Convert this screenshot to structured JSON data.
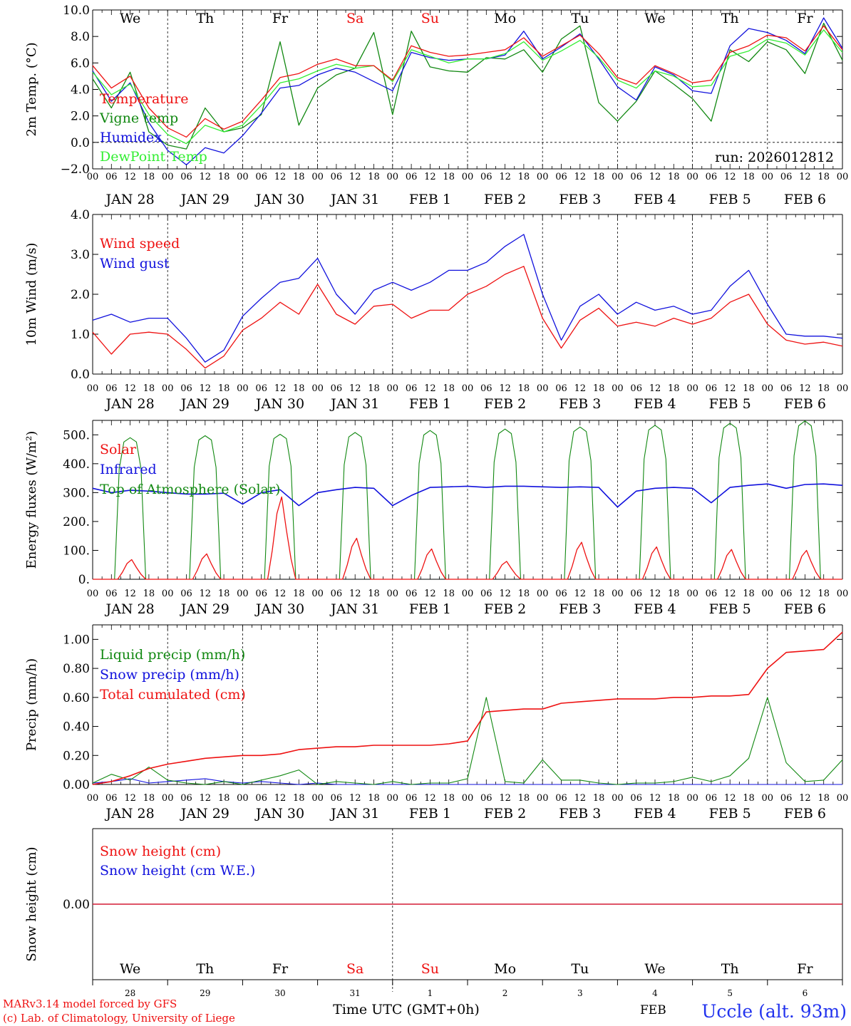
{
  "colors": {
    "red": "#ee1111",
    "darkgreen": "#118811",
    "blue": "#1111dd",
    "lightgreen": "#33ee33",
    "axis": "#000000",
    "weekend": "#ee1111",
    "station": "#2233ee"
  },
  "days": {
    "weekday_labels": [
      "We",
      "Th",
      "Fr",
      "Sa",
      "Su",
      "Mo",
      "Tu",
      "We",
      "Th",
      "Fr"
    ],
    "weekend_flags": [
      false,
      false,
      false,
      true,
      true,
      false,
      false,
      false,
      false,
      false
    ],
    "date_labels": [
      "JAN 28",
      "JAN 29",
      "JAN 30",
      "JAN 31",
      "FEB  1",
      "FEB  2",
      "FEB  3",
      "FEB  4",
      "FEB  5",
      "FEB  6"
    ],
    "hour_labels": [
      "00",
      "06",
      "12",
      "18"
    ],
    "end_hour_label": "00",
    "bottom_day_numbers": [
      "28",
      "29",
      "30",
      "31",
      "1",
      "2",
      "3",
      "4",
      "5",
      "6"
    ],
    "bottom_month_label": "FEB"
  },
  "footer": {
    "model_line": "MARv3.14 model forced by GFS",
    "credit_line": "(c) Lab. of Climatology, University of Liege",
    "xaxis_title": "Time UTC (GMT+0h)",
    "station": "Uccle (alt. 93m)"
  },
  "chart_data": [
    {
      "type": "line",
      "id": "temperature",
      "ylabel": "2m Temp. (°C)",
      "ylim": [
        -2.0,
        10.0
      ],
      "yticks": [
        -2.0,
        0.0,
        2.0,
        4.0,
        6.0,
        8.0,
        10.0
      ],
      "ytick_labels": [
        "−2.0",
        "0.0",
        "2.0",
        "4.0",
        "6.0",
        "8.0",
        "10.0"
      ],
      "zero_line": true,
      "annotation": "run: 2026012812",
      "x_hours": [
        0,
        6,
        12,
        18,
        24,
        30,
        36,
        42,
        48,
        54,
        60,
        66,
        72,
        78,
        84,
        90,
        96,
        102,
        108,
        114,
        120,
        126,
        132,
        138,
        144,
        150,
        156,
        162,
        168,
        174,
        180,
        186,
        192,
        198,
        204,
        210,
        216,
        222,
        228,
        234,
        240
      ],
      "series": [
        {
          "name": "Temperature",
          "color": "red",
          "values": [
            5.8,
            4.1,
            5.0,
            2.6,
            1.1,
            0.4,
            1.8,
            1.0,
            1.6,
            3.2,
            4.9,
            5.2,
            5.9,
            6.3,
            5.8,
            5.8,
            4.7,
            7.3,
            6.8,
            6.5,
            6.6,
            6.8,
            7.0,
            7.9,
            6.5,
            7.3,
            8.1,
            6.7,
            4.9,
            4.4,
            5.8,
            5.2,
            4.5,
            4.7,
            6.8,
            7.3,
            8.1,
            7.9,
            6.9,
            8.8,
            7.0
          ]
        },
        {
          "name": "Vigne temp",
          "color": "darkgreen",
          "values": [
            4.8,
            2.6,
            5.3,
            0.8,
            -0.2,
            -0.5,
            2.6,
            0.8,
            1.1,
            2.1,
            7.6,
            1.3,
            4.1,
            5.1,
            5.6,
            8.3,
            2.1,
            8.4,
            5.7,
            5.4,
            5.3,
            6.4,
            6.3,
            7.0,
            5.3,
            7.8,
            8.8,
            3.0,
            1.6,
            3.1,
            5.4,
            4.4,
            3.3,
            1.6,
            7.0,
            6.1,
            7.6,
            7.0,
            5.2,
            9.0,
            6.2
          ]
        },
        {
          "name": "Humidex",
          "color": "blue",
          "values": [
            5.4,
            3.1,
            4.5,
            1.5,
            -0.6,
            -1.7,
            -0.4,
            -0.8,
            0.5,
            2.2,
            4.1,
            4.3,
            5.1,
            5.6,
            5.3,
            4.6,
            3.9,
            6.8,
            6.4,
            6.2,
            6.3,
            6.3,
            6.6,
            8.4,
            6.3,
            7.2,
            8.2,
            6.3,
            4.2,
            3.2,
            5.7,
            5.1,
            3.9,
            3.7,
            7.3,
            8.6,
            8.3,
            7.7,
            6.7,
            9.4,
            7.1
          ]
        },
        {
          "name": "DewPoint Temp",
          "color": "lightgreen",
          "values": [
            5.3,
            3.6,
            4.4,
            2.1,
            0.6,
            -0.1,
            1.3,
            0.8,
            1.3,
            2.8,
            4.5,
            4.8,
            5.4,
            5.9,
            5.6,
            5.8,
            4.6,
            7.0,
            6.5,
            6.0,
            6.3,
            6.3,
            6.7,
            7.6,
            6.2,
            6.9,
            7.7,
            6.4,
            4.7,
            4.1,
            5.4,
            5.0,
            4.2,
            4.3,
            6.5,
            6.9,
            7.8,
            7.5,
            6.6,
            8.5,
            6.8
          ]
        }
      ]
    },
    {
      "type": "line",
      "id": "wind",
      "ylabel": "10m Wind (m/s)",
      "ylim": [
        0.0,
        4.0
      ],
      "yticks": [
        0.0,
        1.0,
        2.0,
        3.0,
        4.0
      ],
      "ytick_labels": [
        "0.0",
        "1.0",
        "2.0",
        "3.0",
        "4.0"
      ],
      "x_hours": [
        0,
        6,
        12,
        18,
        24,
        30,
        36,
        42,
        48,
        54,
        60,
        66,
        72,
        78,
        84,
        90,
        96,
        102,
        108,
        114,
        120,
        126,
        132,
        138,
        144,
        150,
        156,
        162,
        168,
        174,
        180,
        186,
        192,
        198,
        204,
        210,
        216,
        222,
        228,
        234,
        240
      ],
      "series": [
        {
          "name": "Wind speed",
          "color": "red",
          "values": [
            1.05,
            0.5,
            1.0,
            1.05,
            1.0,
            0.62,
            0.15,
            0.45,
            1.1,
            1.4,
            1.8,
            1.5,
            2.25,
            1.5,
            1.25,
            1.7,
            1.75,
            1.4,
            1.6,
            1.6,
            2.0,
            2.2,
            2.5,
            2.7,
            1.4,
            0.65,
            1.35,
            1.65,
            1.2,
            1.3,
            1.2,
            1.4,
            1.25,
            1.4,
            1.8,
            2.0,
            1.25,
            0.85,
            0.75,
            0.8,
            0.7
          ]
        },
        {
          "name": "Wind gust",
          "color": "blue",
          "values": [
            1.35,
            1.5,
            1.3,
            1.4,
            1.4,
            0.9,
            0.3,
            0.6,
            1.45,
            1.9,
            2.3,
            2.4,
            2.9,
            2.0,
            1.5,
            2.1,
            2.3,
            2.1,
            2.3,
            2.6,
            2.6,
            2.8,
            3.2,
            3.5,
            2.0,
            0.85,
            1.7,
            2.0,
            1.5,
            1.8,
            1.6,
            1.7,
            1.5,
            1.6,
            2.2,
            2.6,
            1.75,
            1.0,
            0.95,
            0.95,
            0.9
          ]
        }
      ]
    },
    {
      "type": "line",
      "id": "energy",
      "ylabel": "Energy fluxes (W/m²)",
      "ylim": [
        0,
        550
      ],
      "yticks": [
        0,
        100,
        200,
        300,
        400,
        500
      ],
      "ytick_labels": [
        "0.",
        "100.",
        "200.",
        "300.",
        "400.",
        "500."
      ],
      "daily_toa_peaks": [
        490,
        497,
        502,
        508,
        515,
        520,
        527,
        533,
        540,
        548
      ],
      "daily_solar_peaks": [
        68,
        88,
        285,
        142,
        105,
        62,
        128,
        112,
        103,
        100
      ],
      "series": [
        {
          "name": "Solar",
          "color": "red",
          "values": "daily_solar_peaks"
        },
        {
          "name": "Infrared",
          "color": "blue",
          "x_hours": [
            0,
            6,
            12,
            18,
            24,
            30,
            36,
            42,
            48,
            54,
            60,
            66,
            72,
            78,
            84,
            90,
            96,
            102,
            108,
            114,
            120,
            126,
            132,
            138,
            144,
            150,
            156,
            162,
            168,
            174,
            180,
            186,
            192,
            198,
            204,
            210,
            216,
            222,
            228,
            234,
            240
          ],
          "values": [
            315,
            300,
            308,
            305,
            300,
            295,
            295,
            298,
            260,
            300,
            310,
            255,
            300,
            310,
            318,
            315,
            255,
            290,
            318,
            320,
            322,
            318,
            322,
            322,
            320,
            318,
            320,
            318,
            250,
            305,
            315,
            318,
            315,
            265,
            318,
            325,
            330,
            315,
            328,
            330,
            325
          ]
        },
        {
          "name": "Top of Atmosphere (Solar)",
          "color": "darkgreen",
          "values": "daily_toa_peaks"
        }
      ]
    },
    {
      "type": "line",
      "id": "precip",
      "ylabel": "Precip (mm/h)",
      "ylim": [
        0.0,
        1.1
      ],
      "yticks": [
        0.0,
        0.2,
        0.4,
        0.6,
        0.8,
        1.0
      ],
      "ytick_labels": [
        "0.00",
        "0.20",
        "0.40",
        "0.60",
        "0.80",
        "1.00"
      ],
      "x_hours": [
        0,
        6,
        12,
        18,
        24,
        30,
        36,
        42,
        48,
        54,
        60,
        66,
        72,
        78,
        84,
        90,
        96,
        102,
        108,
        114,
        120,
        126,
        132,
        138,
        144,
        150,
        156,
        162,
        168,
        174,
        180,
        186,
        192,
        198,
        204,
        210,
        216,
        222,
        228,
        234,
        240
      ],
      "series": [
        {
          "name": "Liquid precip (mm/h)",
          "color": "darkgreen",
          "values": [
            0.01,
            0.07,
            0.03,
            0.12,
            0.03,
            0.01,
            0.0,
            0.02,
            0.0,
            0.03,
            0.06,
            0.1,
            0.0,
            0.02,
            0.01,
            0.0,
            0.02,
            0.0,
            0.01,
            0.01,
            0.04,
            0.6,
            0.02,
            0.01,
            0.17,
            0.03,
            0.03,
            0.01,
            0.0,
            0.01,
            0.01,
            0.02,
            0.05,
            0.02,
            0.06,
            0.18,
            0.6,
            0.15,
            0.02,
            0.03,
            0.17
          ]
        },
        {
          "name": "Snow precip (mm/h)",
          "color": "blue",
          "values": [
            0.01,
            0.02,
            0.04,
            0.01,
            0.02,
            0.03,
            0.04,
            0.02,
            0.01,
            0.02,
            0.01,
            0.0,
            0.01,
            0.0,
            0.0,
            0.0,
            0.0,
            0.0,
            0.0,
            0.0,
            0.0,
            0.0,
            0.0,
            0.0,
            0.0,
            0.0,
            0.0,
            0.0,
            0.0,
            0.0,
            0.0,
            0.0,
            0.0,
            0.0,
            0.0,
            0.0,
            0.0,
            0.0,
            0.0,
            0.0,
            0.0
          ]
        },
        {
          "name": "Total cumulated (cm)",
          "color": "red",
          "values": [
            0.0,
            0.02,
            0.06,
            0.11,
            0.14,
            0.16,
            0.18,
            0.19,
            0.2,
            0.2,
            0.21,
            0.24,
            0.25,
            0.26,
            0.26,
            0.27,
            0.27,
            0.27,
            0.27,
            0.28,
            0.3,
            0.5,
            0.51,
            0.52,
            0.52,
            0.56,
            0.57,
            0.58,
            0.59,
            0.59,
            0.59,
            0.6,
            0.6,
            0.61,
            0.61,
            0.62,
            0.8,
            0.91,
            0.92,
            0.93,
            1.05
          ]
        }
      ]
    },
    {
      "type": "line",
      "id": "snow",
      "ylabel": "Snow height (cm)",
      "ylim": [
        -1.0,
        1.0
      ],
      "yticks": [
        0.0
      ],
      "ytick_labels": [
        "0.00"
      ],
      "x_hours": [
        0,
        240
      ],
      "series": [
        {
          "name": "Snow height (cm)",
          "color": "red",
          "values": [
            0.0,
            0.0
          ]
        },
        {
          "name": "Snow height (cm W.E.)",
          "color": "blue",
          "values": [
            0.0,
            0.0
          ]
        }
      ]
    }
  ]
}
